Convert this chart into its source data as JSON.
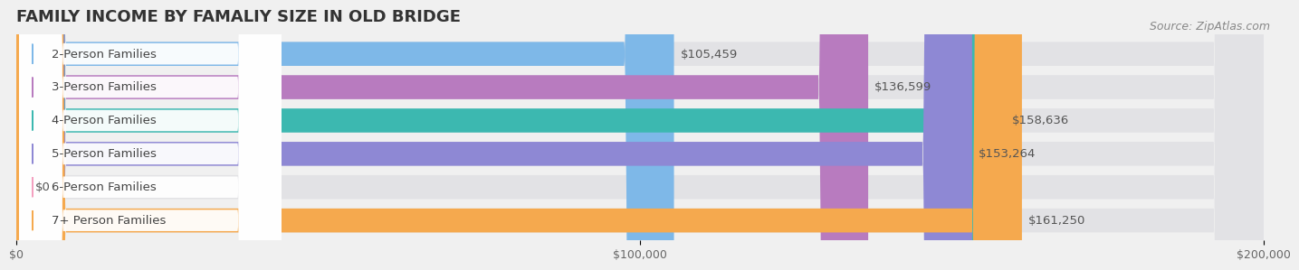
{
  "title": "FAMILY INCOME BY FAMALIY SIZE IN OLD BRIDGE",
  "source": "Source: ZipAtlas.com",
  "categories": [
    "2-Person Families",
    "3-Person Families",
    "4-Person Families",
    "5-Person Families",
    "6-Person Families",
    "7+ Person Families"
  ],
  "values": [
    105459,
    136599,
    158636,
    153264,
    0,
    161250
  ],
  "bar_colors": [
    "#7eb8e8",
    "#b87bbf",
    "#3cb8b0",
    "#8e88d4",
    "#f4a0c0",
    "#f5a94e"
  ],
  "label_colors": [
    "#5a9fd4",
    "#9e60ad",
    "#2aa09a",
    "#7070c0",
    "#e880a8",
    "#e0943a"
  ],
  "value_labels": [
    "$105,459",
    "$136,599",
    "$158,636",
    "$153,264",
    "$0",
    "$161,250"
  ],
  "xlim": [
    0,
    200000
  ],
  "xticks": [
    0,
    100000,
    200000
  ],
  "xticklabels": [
    "$0",
    "$100,000",
    "$200,000"
  ],
  "background_color": "#f0f0f0",
  "bar_bg_color": "#e8e8e8",
  "title_fontsize": 13,
  "source_fontsize": 9,
  "label_fontsize": 9.5,
  "value_fontsize": 9.5
}
